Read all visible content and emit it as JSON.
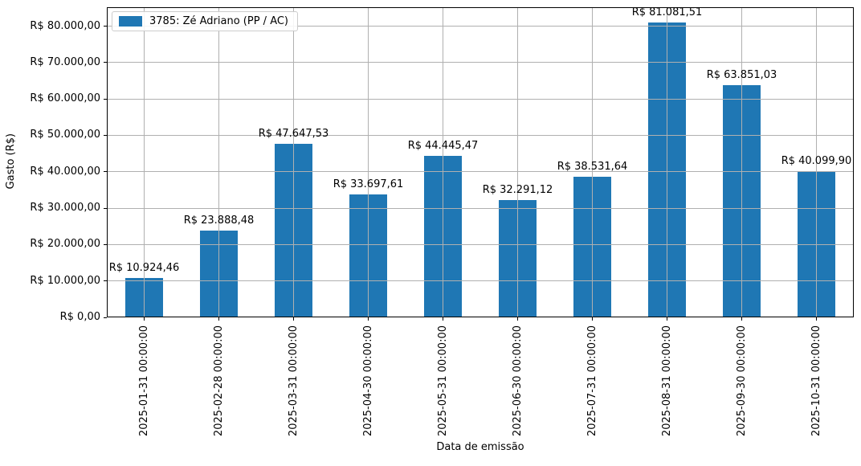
{
  "chart_data": {
    "type": "bar",
    "title": "",
    "xlabel": "Data de emissão",
    "ylabel": "Gasto (R$)",
    "legend": {
      "label": "3785: Zé Adriano (PP / AC)",
      "position": "upper left"
    },
    "categories": [
      "2025-01-31 00:00:00",
      "2025-02-28 00:00:00",
      "2025-03-31 00:00:00",
      "2025-04-30 00:00:00",
      "2025-05-31 00:00:00",
      "2025-06-30 00:00:00",
      "2025-07-31 00:00:00",
      "2025-08-31 00:00:00",
      "2025-09-30 00:00:00",
      "2025-10-31 00:00:00"
    ],
    "values": [
      10924.46,
      23888.48,
      47647.53,
      33697.61,
      44445.47,
      32291.12,
      38531.64,
      81081.51,
      63851.03,
      40099.9
    ],
    "bar_value_labels": [
      "R$ 10.924,46",
      "R$ 23.888,48",
      "R$ 47.647,53",
      "R$ 33.697,61",
      "R$ 44.445,47",
      "R$ 32.291,12",
      "R$ 38.531,64",
      "R$ 81.081,51",
      "R$ 63.851,03",
      "R$ 40.099,90"
    ],
    "yticks": {
      "values": [
        0,
        10000,
        20000,
        30000,
        40000,
        50000,
        60000,
        70000,
        80000
      ],
      "labels": [
        "R$ 0,00",
        "R$ 10.000,00",
        "R$ 20.000,00",
        "R$ 30.000,00",
        "R$ 40.000,00",
        "R$ 50.000,00",
        "R$ 60.000,00",
        "R$ 70.000,00",
        "R$ 80.000,00"
      ]
    },
    "ylim": [
      0,
      85200
    ],
    "grid": true,
    "colors": {
      "bar": "#1f77b4",
      "grid": "#b0b0b0",
      "spine": "#000000",
      "text": "#000000",
      "legend_border": "#cccccc"
    }
  }
}
